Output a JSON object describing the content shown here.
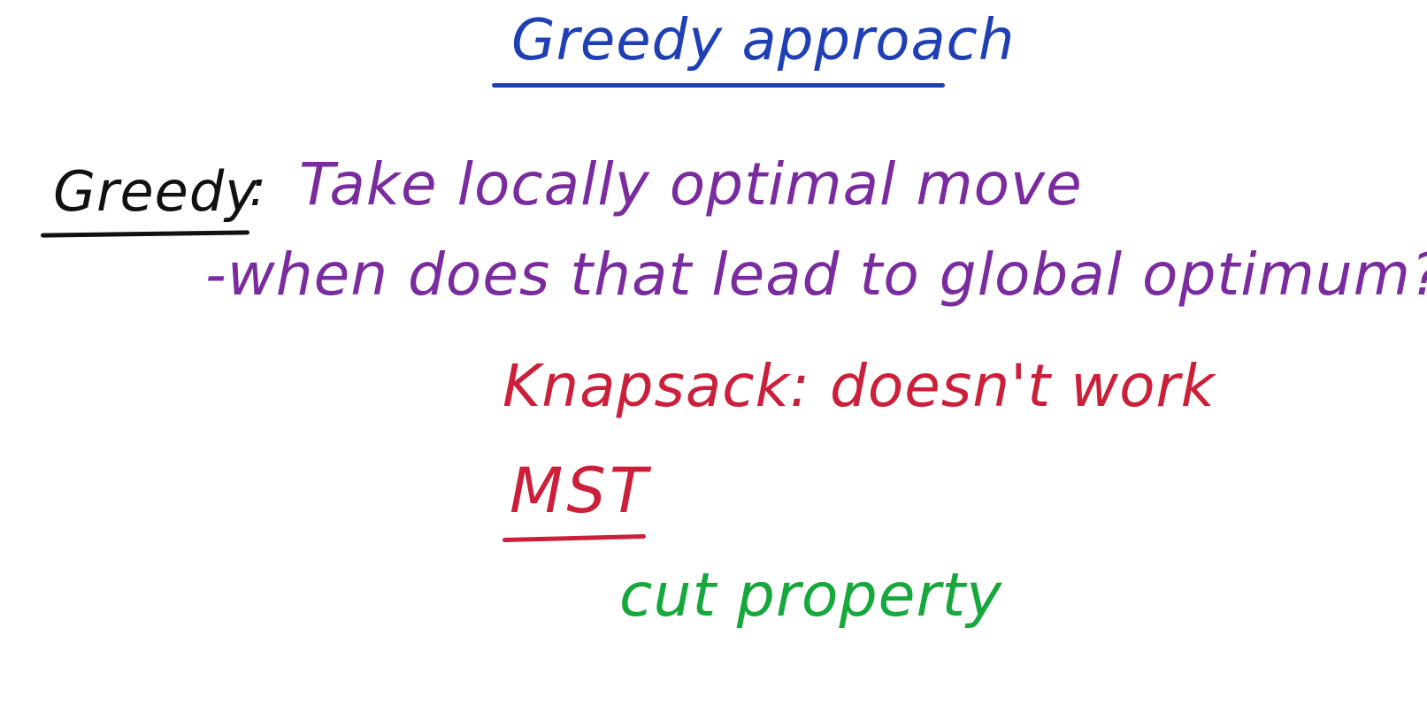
{
  "colors": {
    "background": "#ffffff",
    "blue": "#1f3fb5",
    "black": "#111111",
    "purple": "#7a2c9e",
    "red": "#cc1f3a",
    "green": "#16a83c"
  },
  "title": "Greedy approach",
  "greedy": {
    "label": "Greedy",
    "colon": ":",
    "definition": "Take locally optimal move",
    "question": "-when does that lead to global optimum?"
  },
  "examples": {
    "knapsack": "Knapsack: doesn't work",
    "mst": "MST",
    "cut_property": "cut property"
  }
}
